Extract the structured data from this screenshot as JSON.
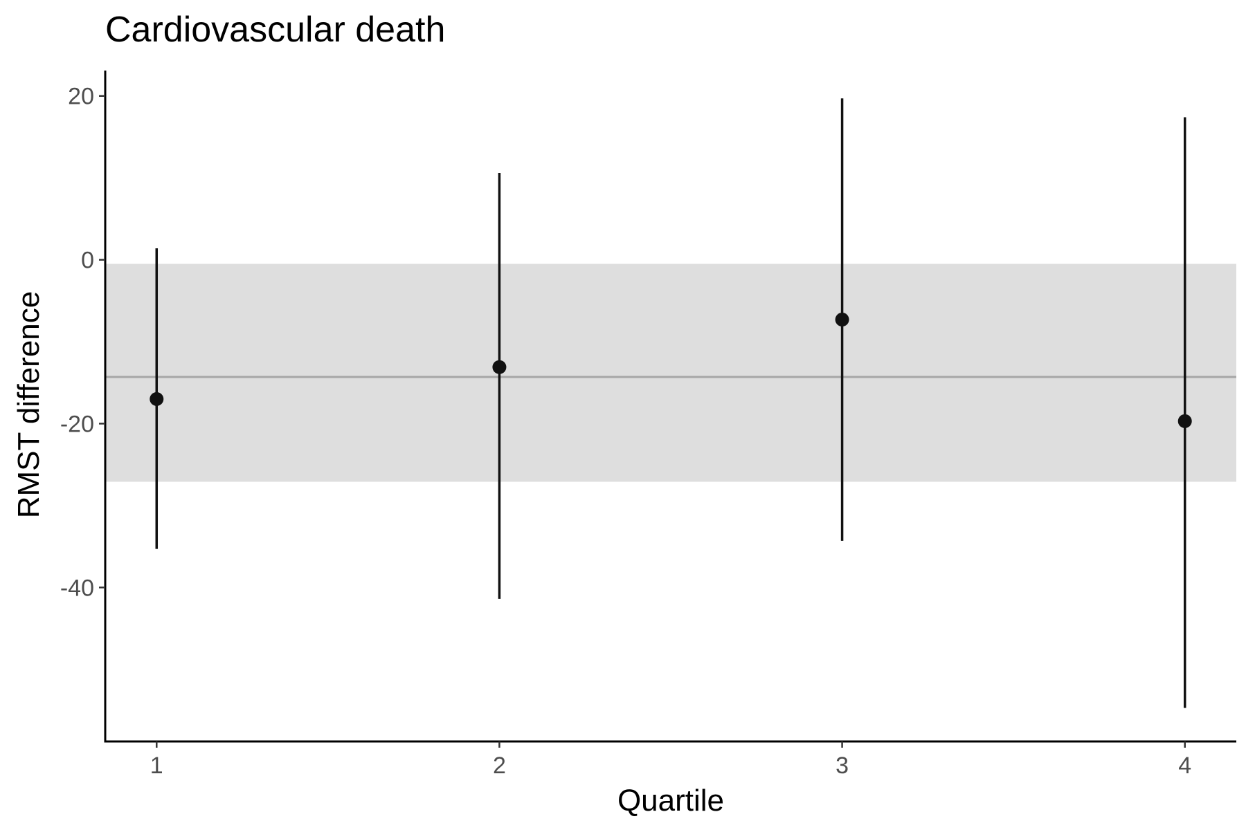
{
  "chart_data": {
    "type": "scatter",
    "title": "Cardiovascular death",
    "xlabel": "Quartile",
    "ylabel": "RMST difference",
    "x_ticks": [
      1,
      2,
      3,
      4
    ],
    "y_ticks": [
      20,
      0,
      -20,
      -40
    ],
    "xlim": [
      0.85,
      4.15
    ],
    "ylim": [
      -58.8,
      23.1
    ],
    "grid": false,
    "legend": "none",
    "series": [
      {
        "points": [
          {
            "x": 1,
            "y": -17.0,
            "lower": -35.3,
            "upper": 1.4
          },
          {
            "x": 2,
            "y": -13.1,
            "lower": -41.4,
            "upper": 10.6
          },
          {
            "x": 3,
            "y": -7.3,
            "lower": -34.3,
            "upper": 19.7
          },
          {
            "x": 4,
            "y": -19.7,
            "lower": -54.7,
            "upper": 17.4
          }
        ]
      }
    ],
    "reference": {
      "estimate": -14.3,
      "ci_lower": -27.1,
      "ci_upper": -0.5
    },
    "colors": {
      "points": "#111111",
      "band": "#dedede",
      "reference_line": "#a6a6a6",
      "axis": "#000000",
      "tick_label": "#4d4d4d"
    }
  }
}
